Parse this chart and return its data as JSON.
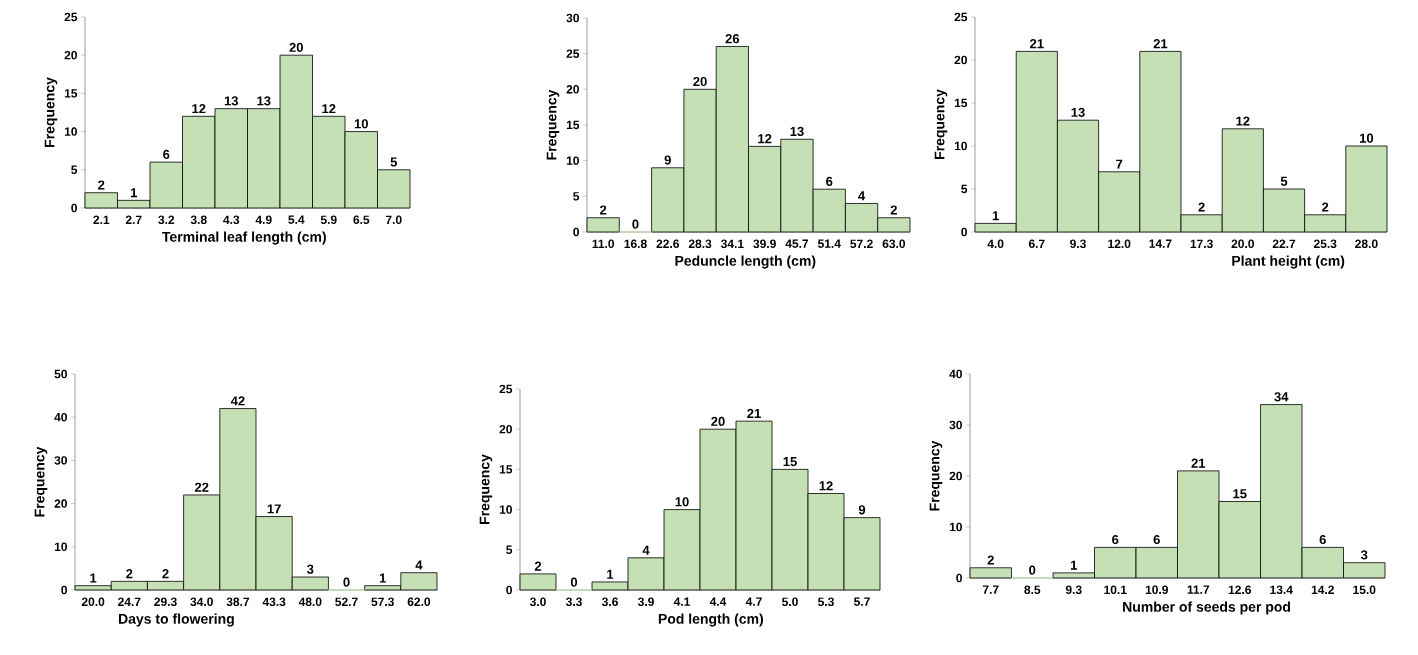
{
  "chart_data": [
    {
      "type": "bar",
      "xlabel": "Terminal leaf length (cm)",
      "ylabel": "Frequency",
      "categories": [
        "2.1",
        "2.7",
        "3.2",
        "3.8",
        "4.3",
        "4.9",
        "5.4",
        "5.9",
        "6.5",
        "7.0"
      ],
      "values": [
        2,
        1,
        6,
        12,
        13,
        13,
        20,
        12,
        10,
        5
      ],
      "color": "#c5e0b4",
      "ylim": [
        0,
        25
      ],
      "yticks": [
        0,
        5,
        10,
        15,
        20,
        25
      ],
      "data_labels": true
    },
    {
      "type": "bar",
      "xlabel": "Peduncle length (cm)",
      "ylabel": "Frequency",
      "categories": [
        "11.0",
        "16.8",
        "22.6",
        "28.3",
        "34.1",
        "39.9",
        "45.7",
        "51.4",
        "57.2",
        "63.0"
      ],
      "values": [
        2,
        0,
        9,
        20,
        26,
        12,
        13,
        6,
        4,
        2
      ],
      "color": "#c5e0b4",
      "ylim": [
        0,
        30
      ],
      "yticks": [
        0,
        5,
        10,
        15,
        20,
        25,
        30
      ],
      "data_labels": true
    },
    {
      "type": "bar",
      "xlabel": "Plant height (cm)",
      "ylabel": "Frequency",
      "categories": [
        "4.0",
        "6.7",
        "9.3",
        "12.0",
        "14.7",
        "17.3",
        "20.0",
        "22.7",
        "25.3",
        "28.0"
      ],
      "values": [
        1,
        21,
        13,
        7,
        21,
        2,
        12,
        5,
        2,
        10
      ],
      "color": "#c5e0b4",
      "ylim": [
        0,
        25
      ],
      "yticks": [
        0,
        5,
        10,
        15,
        20,
        25
      ],
      "data_labels": true
    },
    {
      "type": "bar",
      "xlabel": "Days to flowering",
      "ylabel": "Frequency",
      "categories": [
        "20.0",
        "24.7",
        "29.3",
        "34.0",
        "38.7",
        "43.3",
        "48.0",
        "52.7",
        "57.3",
        "62.0"
      ],
      "values": [
        1,
        2,
        2,
        22,
        42,
        17,
        3,
        0,
        1,
        4
      ],
      "color": "#c5e0b4",
      "ylim": [
        0,
        50
      ],
      "yticks": [
        0,
        10,
        20,
        30,
        40,
        50
      ],
      "data_labels": true
    },
    {
      "type": "bar",
      "xlabel": "Pod length (cm)",
      "ylabel": "Frequency",
      "categories": [
        "3.0",
        "3.3",
        "3.6",
        "3.9",
        "4.1",
        "4.4",
        "4.7",
        "5.0",
        "5.3",
        "5.7"
      ],
      "values": [
        2,
        0,
        1,
        4,
        10,
        20,
        21,
        15,
        12,
        9
      ],
      "color": "#c5e0b4",
      "ylim": [
        0,
        25
      ],
      "yticks": [
        0,
        5,
        10,
        15,
        20,
        25
      ],
      "data_labels": true
    },
    {
      "type": "bar",
      "xlabel": "Number of seeds per pod",
      "ylabel": "Frequency",
      "categories": [
        "7.7",
        "8.5",
        "9.3",
        "10.1",
        "10.9",
        "11.7",
        "12.6",
        "13.4",
        "14.2",
        "15.0"
      ],
      "values": [
        2,
        0,
        1,
        6,
        6,
        21,
        15,
        34,
        6,
        3
      ],
      "color": "#c5e0b4",
      "ylim": [
        0,
        40
      ],
      "yticks": [
        0,
        10,
        20,
        30,
        40
      ],
      "data_labels": true
    }
  ]
}
